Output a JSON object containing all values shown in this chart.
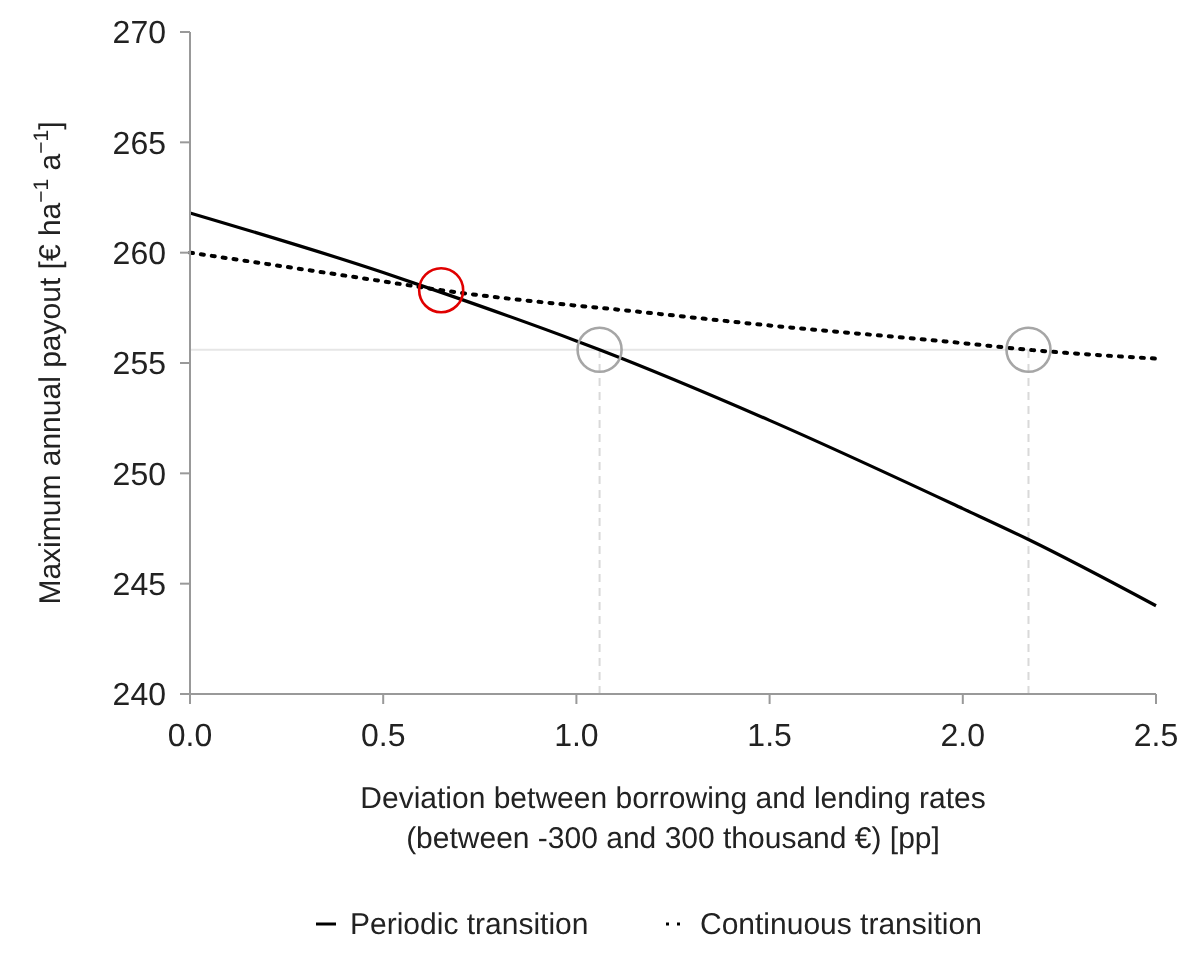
{
  "chart_data": {
    "type": "line",
    "xlabel": "Deviation between borrowing and lending rates\n(between -300 and 300 thousand €) [pp]",
    "ylabel": "Maximum annual payout [€ ha$^{−1}$ a$^{−1}$]",
    "xlim": [
      0,
      2.5
    ],
    "xticks": [
      {
        "value": 0,
        "label": "0.0"
      },
      {
        "value": 0.5,
        "label": "0.5"
      },
      {
        "value": 1,
        "label": "1.0"
      },
      {
        "value": 1.5,
        "label": "1.5"
      },
      {
        "value": 2,
        "label": "2.0"
      },
      {
        "value": 2.5,
        "label": "2.5"
      }
    ],
    "ylim": [
      240,
      270
    ],
    "yticks": [
      240,
      245,
      250,
      255,
      260,
      265,
      270
    ],
    "legend": "bottom",
    "ref_lines": [
      {
        "axis": "y",
        "value": 255.6,
        "color": "#e6e6e6",
        "line_style": "solid"
      },
      {
        "axis": "x",
        "value": 1.06,
        "color": "#d9d9d9",
        "line_style": "dashed"
      },
      {
        "axis": "x",
        "value": 2.17,
        "color": "#d9d9d9",
        "line_style": "dashed"
      }
    ],
    "series": [
      {
        "name": "Periodic transition",
        "color": "#000000",
        "line_style": "solid",
        "x": [
          0,
          0.5,
          0.65,
          1.0,
          1.06,
          1.5,
          2.0,
          2.17,
          2.5
        ],
        "values": [
          261.8,
          259.1,
          258.2,
          256.0,
          255.6,
          252.4,
          248.4,
          247.0,
          244.0
        ]
      },
      {
        "name": "Continuous transition",
        "color": "#000000",
        "line_style": "dotted",
        "x": [
          0,
          0.5,
          0.65,
          1.0,
          1.06,
          1.5,
          2.0,
          2.17,
          2.5
        ],
        "values": [
          260.0,
          258.7,
          258.3,
          257.6,
          257.5,
          256.7,
          255.9,
          255.6,
          255.2
        ]
      },
      {
        "type": "scatter",
        "marker": "circle",
        "colors": [
          "#e00000",
          "#a6a6a6",
          "#a6a6a6"
        ],
        "x": [
          0.65,
          1.06,
          2.17
        ],
        "values": [
          258.3,
          255.6,
          255.6
        ]
      }
    ]
  }
}
